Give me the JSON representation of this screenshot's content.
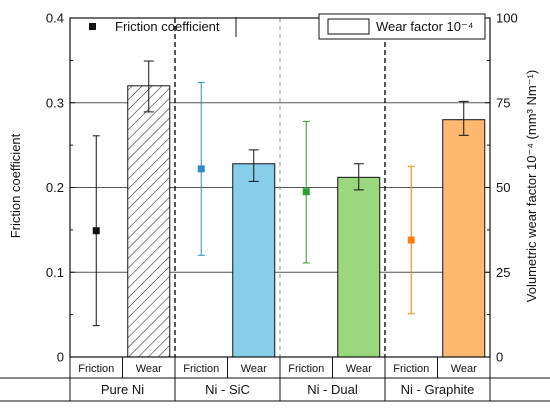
{
  "chart_data": {
    "type": "bar",
    "groups": [
      "Pure Ni",
      "Ni - SiC",
      "Ni - Dual",
      "Ni - Graphite"
    ],
    "sub_categories": [
      "Friction",
      "Wear"
    ],
    "y_left": {
      "label": "Friction coefficient",
      "lim": [
        0,
        0.4
      ],
      "ticks": [
        0,
        0.1,
        0.2,
        0.3,
        0.4
      ],
      "tick_labels": [
        "0",
        "0.1",
        "0.2",
        "0.3",
        "0.4"
      ]
    },
    "y_right": {
      "label": "Volumetric wear factor 10⁻⁴ (mm³ Nm⁻¹)",
      "lim": [
        0,
        100
      ],
      "ticks": [
        0,
        25,
        50,
        75,
        100
      ],
      "tick_labels": [
        "0",
        "25",
        "50",
        "75",
        "100"
      ]
    },
    "grid": true,
    "legend": [
      {
        "name": "Friction coefficient",
        "marker": "square",
        "position": "top-left"
      },
      {
        "name": "Wear factor 10⁻⁴",
        "marker": "open-bar",
        "position": "top-right"
      }
    ],
    "series": [
      {
        "name": "Friction coefficient",
        "kind": "point",
        "axis": "left",
        "values": [
          0.149,
          0.222,
          0.195,
          0.138
        ],
        "err_low": [
          0.037,
          0.12,
          0.111,
          0.051
        ],
        "err_high": [
          0.261,
          0.324,
          0.278,
          0.225
        ],
        "colors": [
          "#111111",
          "#2e8bc6",
          "#2ca02c",
          "#ff7f0e"
        ]
      },
      {
        "name": "Wear factor 10⁻⁴",
        "kind": "bar",
        "axis": "right",
        "values": [
          80,
          57,
          53,
          70
        ],
        "err_low": [
          72.3,
          51.8,
          49.3,
          65.4
        ],
        "err_high": [
          87.3,
          61.1,
          57.0,
          75.4
        ],
        "fills": [
          "hatch",
          "#87ceeb",
          "#9bd87d",
          "#ffb870"
        ]
      }
    ]
  }
}
